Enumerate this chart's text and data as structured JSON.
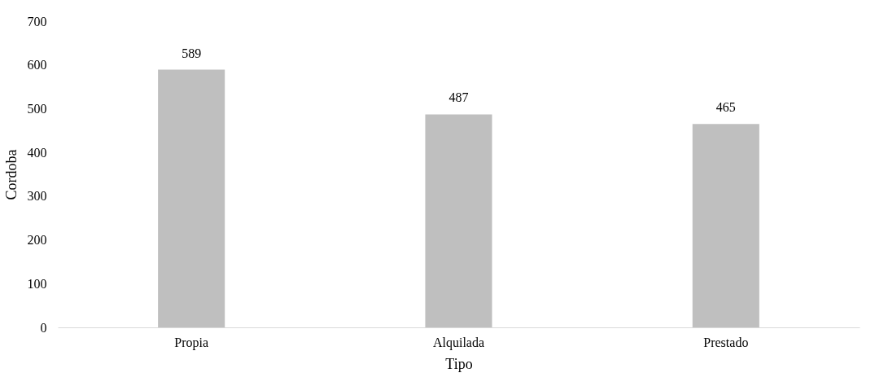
{
  "chart_data": {
    "type": "bar",
    "xlabel": "Tipo",
    "ylabel": "Cordoba",
    "categories": [
      "Propia",
      "Alquilada",
      "Prestado"
    ],
    "values": [
      589,
      487,
      465
    ],
    "color": "#bfbfbf",
    "ylim": [
      0,
      700
    ],
    "yticks": [
      0,
      100,
      200,
      300,
      400,
      500,
      600,
      700
    ],
    "grid": false,
    "data_labels": true
  }
}
